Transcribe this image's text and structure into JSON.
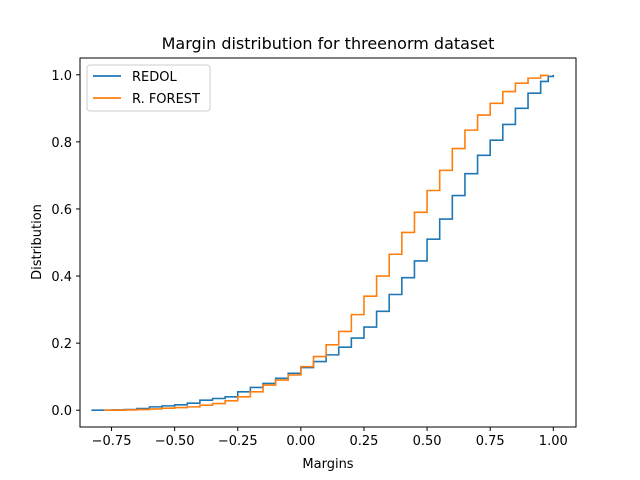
{
  "chart_data": {
    "type": "line",
    "title": "Margin distribution for threenorm dataset",
    "xlabel": "Margins",
    "ylabel": "Distribution",
    "xlim": [
      -0.875,
      1.09
    ],
    "ylim": [
      -0.05,
      1.05
    ],
    "x_ticks": [
      -0.75,
      -0.5,
      -0.25,
      0.0,
      0.25,
      0.5,
      0.75,
      1.0
    ],
    "x_tick_labels": [
      "−0.75",
      "−0.50",
      "−0.25",
      "0.00",
      "0.25",
      "0.50",
      "0.75",
      "1.00"
    ],
    "y_ticks": [
      0.0,
      0.2,
      0.4,
      0.6,
      0.8,
      1.0
    ],
    "y_tick_labels": [
      "0.0",
      "0.2",
      "0.4",
      "0.6",
      "0.8",
      "1.0"
    ],
    "grid": false,
    "legend_position": "upper-left",
    "series": [
      {
        "name": "REDOL",
        "color": "#1f77b4",
        "x": [
          -0.83,
          -0.75,
          -0.7,
          -0.65,
          -0.6,
          -0.55,
          -0.5,
          -0.45,
          -0.4,
          -0.35,
          -0.3,
          -0.25,
          -0.2,
          -0.15,
          -0.1,
          -0.05,
          0.0,
          0.05,
          0.1,
          0.15,
          0.2,
          0.25,
          0.3,
          0.35,
          0.4,
          0.45,
          0.5,
          0.55,
          0.6,
          0.65,
          0.7,
          0.75,
          0.8,
          0.85,
          0.9,
          0.95,
          0.98,
          1.0
        ],
        "y": [
          0.0,
          0.001,
          0.002,
          0.005,
          0.01,
          0.013,
          0.016,
          0.021,
          0.03,
          0.035,
          0.04,
          0.055,
          0.068,
          0.08,
          0.095,
          0.11,
          0.127,
          0.145,
          0.165,
          0.188,
          0.215,
          0.248,
          0.295,
          0.345,
          0.395,
          0.445,
          0.51,
          0.57,
          0.64,
          0.705,
          0.76,
          0.805,
          0.852,
          0.9,
          0.945,
          0.98,
          0.995,
          1.0
        ]
      },
      {
        "name": "R. FOREST",
        "color": "#ff7f0e",
        "x": [
          -0.78,
          -0.7,
          -0.65,
          -0.6,
          -0.55,
          -0.5,
          -0.45,
          -0.4,
          -0.35,
          -0.3,
          -0.25,
          -0.2,
          -0.15,
          -0.1,
          -0.05,
          0.0,
          0.05,
          0.1,
          0.15,
          0.2,
          0.25,
          0.3,
          0.35,
          0.4,
          0.45,
          0.5,
          0.55,
          0.6,
          0.65,
          0.7,
          0.75,
          0.8,
          0.85,
          0.9,
          0.95,
          0.98
        ],
        "y": [
          0.0,
          0.001,
          0.002,
          0.004,
          0.006,
          0.008,
          0.01,
          0.015,
          0.02,
          0.028,
          0.04,
          0.055,
          0.075,
          0.09,
          0.105,
          0.13,
          0.16,
          0.195,
          0.235,
          0.285,
          0.34,
          0.4,
          0.465,
          0.53,
          0.59,
          0.655,
          0.715,
          0.78,
          0.835,
          0.88,
          0.915,
          0.95,
          0.975,
          0.99,
          0.998,
          1.0
        ]
      }
    ]
  }
}
